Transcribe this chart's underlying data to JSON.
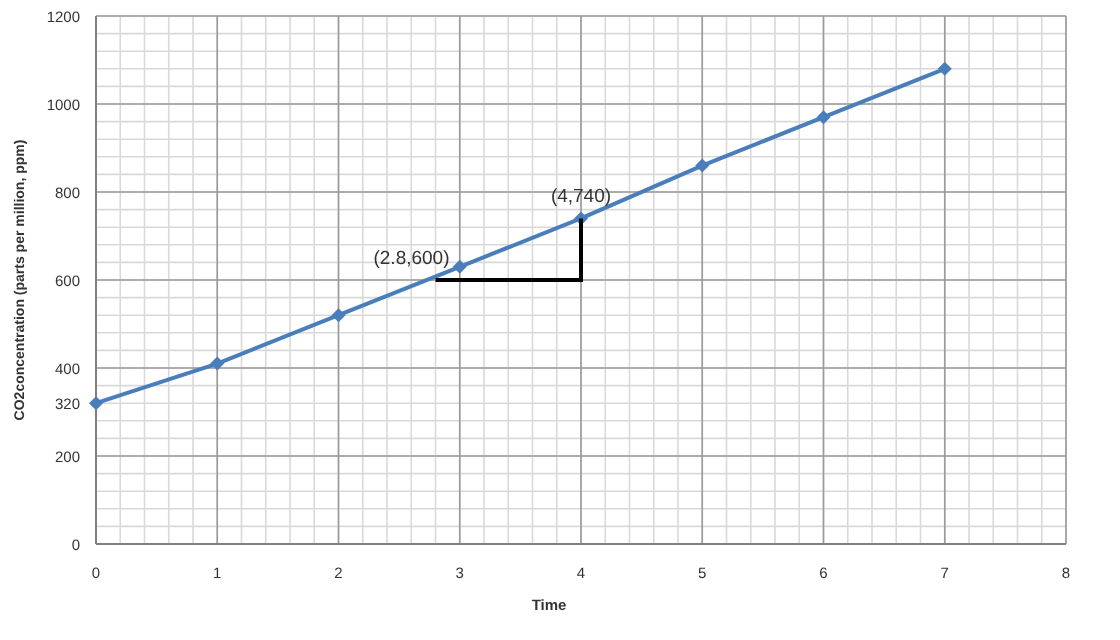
{
  "chart_data": {
    "type": "line",
    "xlabel": "Time",
    "ylabel": "CO2concentration (parts per million, ppm)",
    "x": [
      0,
      1,
      2,
      3,
      4,
      5,
      6,
      7
    ],
    "series": [
      {
        "color": "#4a7ebb",
        "values": [
          320,
          410,
          520,
          630,
          740,
          860,
          970,
          1080
        ],
        "marker": "diamond"
      }
    ],
    "xlim": [
      0,
      8
    ],
    "xticks": [
      0,
      1,
      2,
      3,
      4,
      5,
      6,
      7,
      8
    ],
    "ylim": [
      0,
      1200
    ],
    "yticks": [
      0,
      200,
      320,
      400,
      600,
      800,
      1000,
      1200
    ],
    "grid": true,
    "annotations": [
      {
        "text": "(2.8,600)",
        "x": 2.8,
        "y": 600
      },
      {
        "text": "(4,740)",
        "x": 4,
        "y": 740
      }
    ]
  }
}
